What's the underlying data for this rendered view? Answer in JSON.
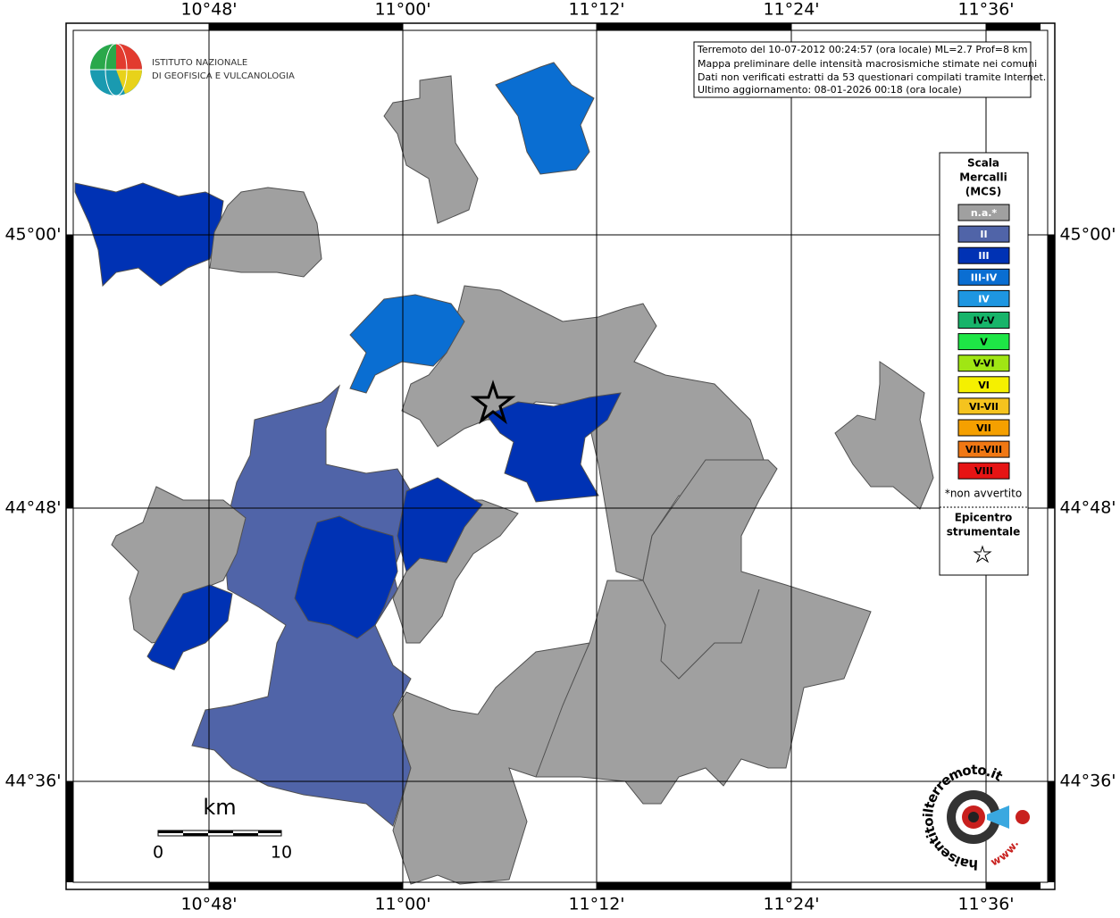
{
  "map": {
    "lon_labels": [
      "10°48'",
      "11°00'",
      "11°12'",
      "11°24'",
      "11°36'"
    ],
    "lat_labels": [
      "45°00'",
      "44°48'",
      "44°36'"
    ]
  },
  "info_box": {
    "lines": [
      "Terremoto del 10-07-2012 00:24:57 (ora locale) ML=2.7 Prof=8 km",
      "Mappa preliminare delle intensità macrosismiche stimate nei comuni",
      "Dati non verificati estratti da 53 questionari compilati tramite Internet.",
      "Ultimo aggiornamento: 08-01-2026 00:18 (ora locale)"
    ]
  },
  "logo": {
    "line1": "ISTITUTO NAZIONALE",
    "line2": "DI GEOFISICA E VULCANOLOGIA"
  },
  "legend": {
    "title_lines": [
      "Scala",
      "Mercalli",
      "(MCS)"
    ],
    "classes": [
      {
        "label": "n.a.*",
        "color": "#a0a0a0"
      },
      {
        "label": "II",
        "color": "#5064a8"
      },
      {
        "label": "III",
        "color": "#0032b4"
      },
      {
        "label": "III-IV",
        "color": "#0a6ed2"
      },
      {
        "label": "IV",
        "color": "#1e96e1"
      },
      {
        "label": "IV-V",
        "color": "#17b46a"
      },
      {
        "label": "V",
        "color": "#1ee646"
      },
      {
        "label": "V-VI",
        "color": "#a0e614"
      },
      {
        "label": "VI",
        "color": "#f5f000"
      },
      {
        "label": "VI-VII",
        "color": "#f5c31e"
      },
      {
        "label": "VII",
        "color": "#f5a000"
      },
      {
        "label": "VII-VIII",
        "color": "#f07814"
      },
      {
        "label": "VIII",
        "color": "#e61414"
      }
    ],
    "note": "*non avvertito",
    "epicenter_lines": [
      "Epicentro",
      "strumentale"
    ]
  },
  "scale_bar": {
    "unit": "km",
    "ticks": [
      0,
      10
    ]
  },
  "watermark": {
    "site": "haisentitoilterremoto.it",
    "prefix": "www."
  }
}
